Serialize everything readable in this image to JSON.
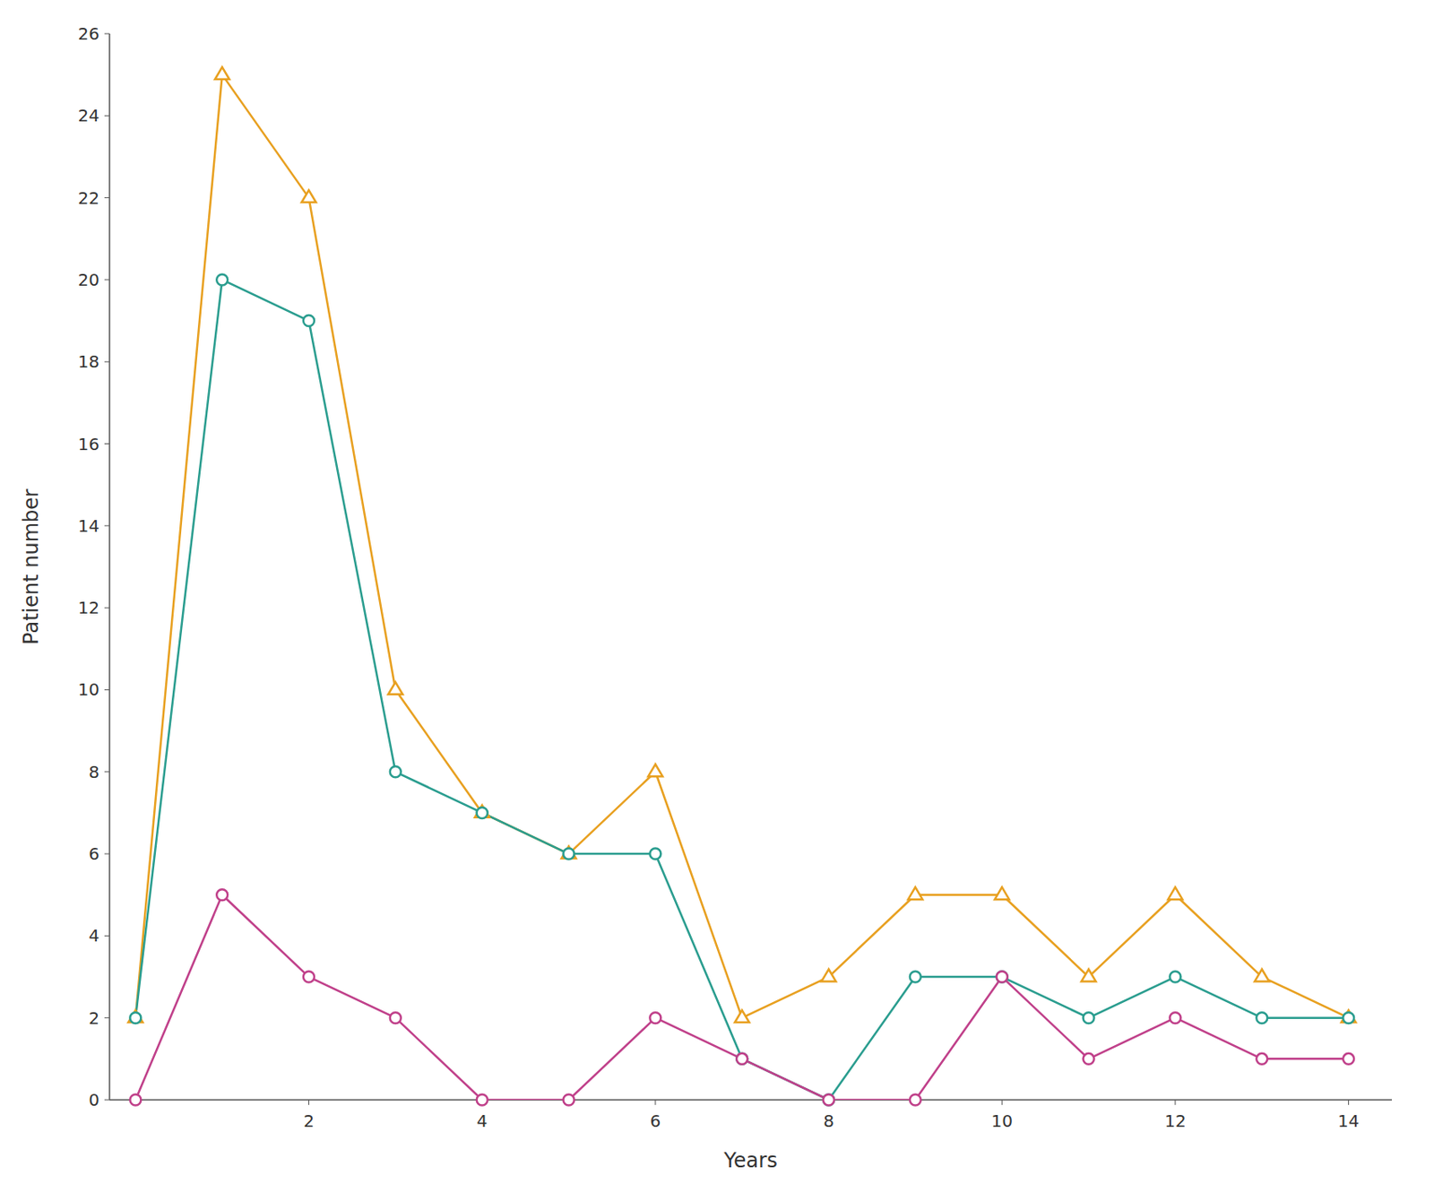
{
  "chart_data": {
    "type": "line",
    "xlabel": "Years",
    "ylabel": "Patient number",
    "x": [
      0,
      1,
      2,
      3,
      4,
      5,
      6,
      7,
      8,
      9,
      10,
      11,
      12,
      13,
      14
    ],
    "series": [
      {
        "color": "#E8A020",
        "marker": "triangle",
        "values": [
          2,
          25,
          22,
          10,
          7,
          6,
          8,
          2,
          3,
          5,
          5,
          3,
          5,
          3,
          2
        ]
      },
      {
        "color": "#2A9D8F",
        "marker": "circle",
        "values": [
          2,
          20,
          19,
          8,
          7,
          6,
          6,
          1,
          0,
          3,
          3,
          2,
          3,
          2,
          2
        ]
      },
      {
        "color": "#C0408A",
        "marker": "circle",
        "values": [
          0,
          5,
          3,
          2,
          0,
          0,
          2,
          1,
          0,
          0,
          3,
          1,
          2,
          1,
          1
        ]
      }
    ],
    "xlim": [
      -0.3,
      14.5
    ],
    "ylim": [
      0,
      26
    ],
    "xticks": [
      2,
      4,
      6,
      8,
      10,
      12,
      14
    ],
    "yticks": [
      0,
      2,
      4,
      6,
      8,
      10,
      12,
      14,
      16,
      18,
      20,
      22,
      24,
      26
    ],
    "grid": false
  }
}
